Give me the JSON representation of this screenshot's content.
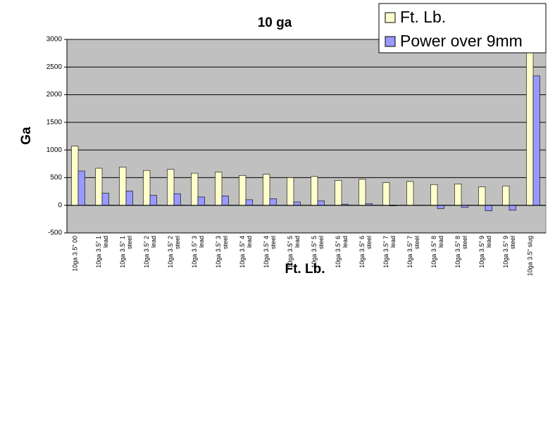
{
  "chart_data": {
    "type": "bar",
    "title": "10 ga",
    "y_label": "Ga",
    "x_label": "Ft. Lb.",
    "categories": [
      "10ga 3.5\" 00",
      "10ga 3.5\" 1 lead",
      "10ga 3.5\" 1 steel",
      "10ga 3.5\" 2 lead",
      "10ga 3.5\" 2 steel",
      "10ga 3.5\" 3 lead",
      "10ga 3.5\" 3 steel",
      "10ga 3.5\" 4 lead",
      "10ga 3.5\" 4 steel",
      "10ga 3.5\" 5 lead",
      "10ga 3.5\" 5 steel",
      "10ga 3.5\" 6 lead",
      "10ga 3.5\" 6 steel",
      "10ga 3.5\" 7 lead",
      "10ga 3.5\" 7 steel",
      "10ga 3.5\" 8 lead",
      "10ga 3.5\" 8 steel",
      "10ga 3.5\" 9 lead",
      "10ga 3.5\" 9 steel",
      "10ga 3.5\" slug"
    ],
    "series": [
      {
        "name": "Ft. Lb.",
        "color": "#ffffcc",
        "values": [
          1070,
          670,
          690,
          630,
          650,
          580,
          600,
          540,
          560,
          500,
          520,
          450,
          470,
          410,
          430,
          375,
          385,
          335,
          350,
          3000
        ]
      },
      {
        "name": "Power over 9mm",
        "color": "#9999ff",
        "values": [
          620,
          220,
          260,
          180,
          210,
          150,
          170,
          100,
          120,
          60,
          80,
          20,
          30,
          -10,
          0,
          -60,
          -40,
          -100,
          -90,
          2340
        ]
      }
    ],
    "ylim": [
      -500,
      3000
    ],
    "yticks": [
      -500,
      0,
      500,
      1000,
      1500,
      2000,
      2500,
      3000
    ],
    "grid": true,
    "plot_background": "#c0c0c0",
    "legend": "top-right"
  }
}
